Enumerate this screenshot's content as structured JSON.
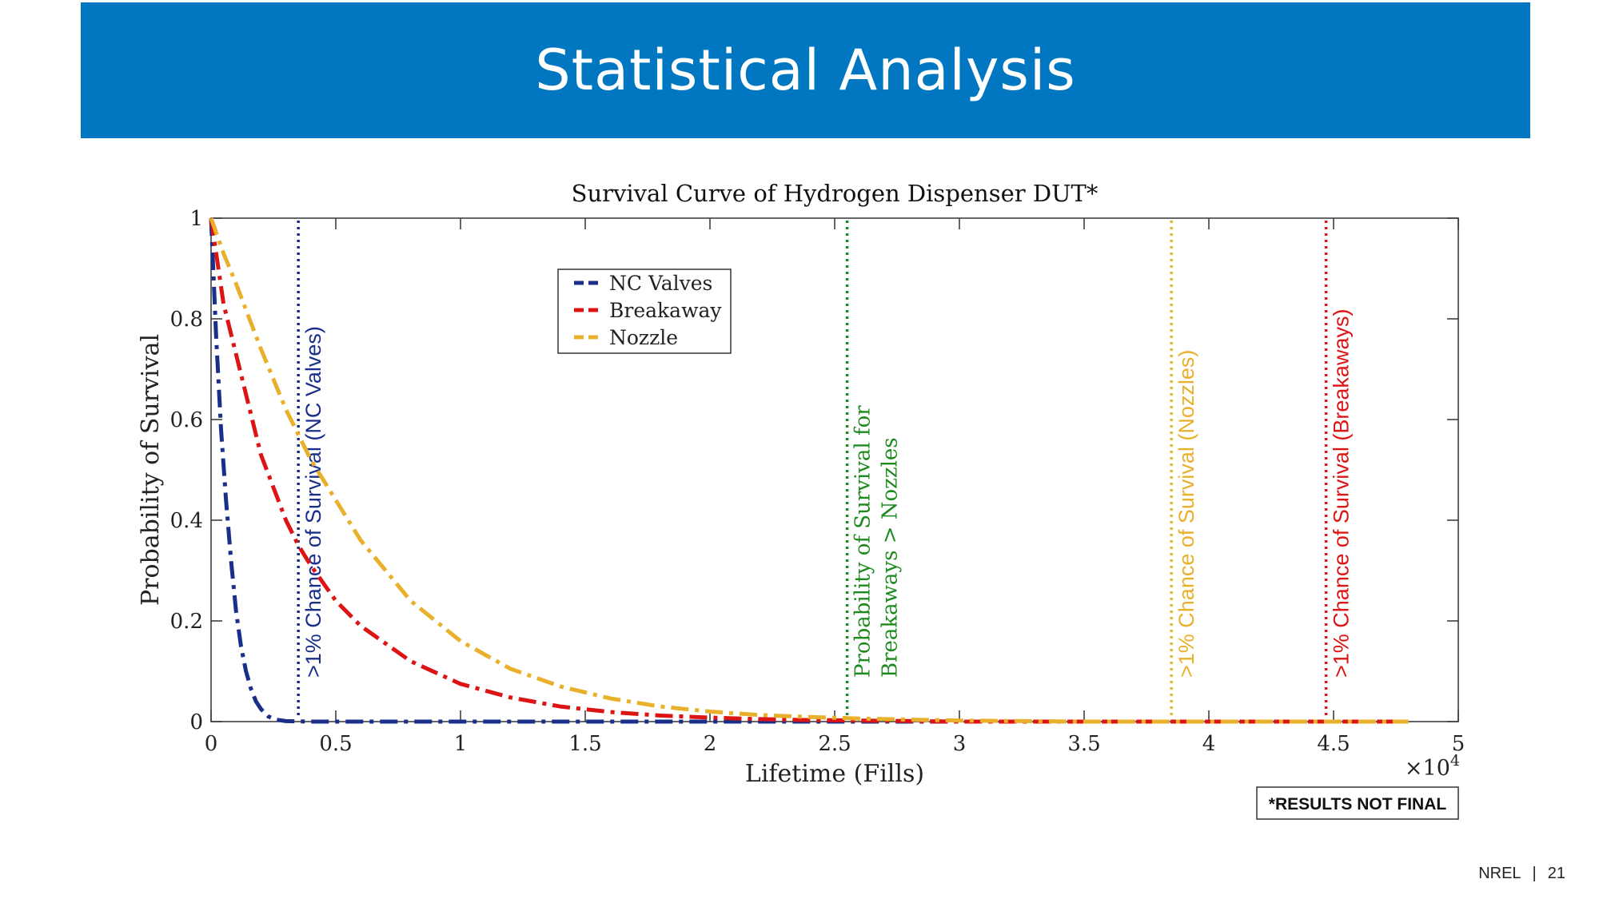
{
  "slide": {
    "title": "Statistical Analysis",
    "footer_org": "NREL",
    "footer_sep": "|",
    "page_number": "21"
  },
  "chart_data": {
    "type": "line",
    "title": "Survival Curve of Hydrogen Dispenser DUT*",
    "xlabel": "Lifetime (Fills)",
    "ylabel": "Probability of Survival",
    "x_multiplier": "×10",
    "x_multiplier_exp": "4",
    "xlim": [
      0,
      50000
    ],
    "ylim": [
      0,
      1
    ],
    "x_ticks": [
      0,
      5000,
      10000,
      15000,
      20000,
      25000,
      30000,
      35000,
      40000,
      45000,
      50000
    ],
    "x_tick_labels": [
      "0",
      "0.5",
      "1",
      "1.5",
      "2",
      "2.5",
      "3",
      "3.5",
      "4",
      "4.5",
      "5"
    ],
    "y_ticks": [
      0,
      0.2,
      0.4,
      0.6,
      0.8,
      1
    ],
    "y_tick_labels": [
      "0",
      "0.2",
      "0.4",
      "0.6",
      "0.8",
      "1"
    ],
    "grid": false,
    "legend_position": "top-left",
    "series": [
      {
        "name": "NC Valves",
        "color": "#1a2f8a",
        "x": [
          0,
          200,
          400,
          600,
          800,
          1000,
          1200,
          1400,
          1600,
          1800,
          2000,
          2300,
          2600,
          3000,
          4000,
          48000
        ],
        "y": [
          1.0,
          0.77,
          0.58,
          0.44,
          0.32,
          0.22,
          0.15,
          0.1,
          0.065,
          0.04,
          0.025,
          0.01,
          0.004,
          0.001,
          0.0,
          0.0
        ]
      },
      {
        "name": "Breakaway",
        "color": "#dd1414",
        "x": [
          0,
          500,
          1000,
          2000,
          3000,
          3500,
          4000,
          5000,
          6000,
          8000,
          10000,
          12000,
          14000,
          16000,
          18000,
          20000,
          22000,
          24000,
          26000,
          30000,
          48000
        ],
        "y": [
          1.0,
          0.83,
          0.73,
          0.53,
          0.4,
          0.35,
          0.31,
          0.24,
          0.19,
          0.12,
          0.075,
          0.048,
          0.03,
          0.019,
          0.012,
          0.008,
          0.005,
          0.003,
          0.002,
          0.0,
          0.0
        ]
      },
      {
        "name": "Nozzle",
        "color": "#e9b02b",
        "x": [
          0,
          500,
          1000,
          2000,
          3000,
          3500,
          4000,
          5000,
          6000,
          8000,
          10000,
          12000,
          14000,
          16000,
          18000,
          20000,
          22000,
          24000,
          26000,
          28000,
          30000,
          35000,
          48000
        ],
        "y": [
          1.0,
          0.93,
          0.87,
          0.74,
          0.62,
          0.57,
          0.52,
          0.44,
          0.36,
          0.24,
          0.16,
          0.105,
          0.07,
          0.046,
          0.03,
          0.02,
          0.013,
          0.009,
          0.006,
          0.004,
          0.002,
          0.0,
          0.0
        ]
      }
    ],
    "reference_lines": [
      {
        "x": 3500,
        "color": "#1a2f8a",
        "label_lines": [
          ">1% Chance of Survival (NC Valves)"
        ],
        "font": "sans"
      },
      {
        "x": 25500,
        "color": "#1e8a1e",
        "label_lines": [
          "Probability of Survival for",
          "Breakaways > Nozzles"
        ],
        "font": "serif"
      },
      {
        "x": 38500,
        "color": "#e9b02b",
        "label_lines": [
          ">1% Chance of Survival (Nozzles)"
        ],
        "font": "sans"
      },
      {
        "x": 44700,
        "color": "#dd1414",
        "label_lines": [
          ">1% Chance of Survival (Breakaways)"
        ],
        "font": "sans"
      }
    ],
    "annotation": "*RESULTS NOT FINAL"
  }
}
